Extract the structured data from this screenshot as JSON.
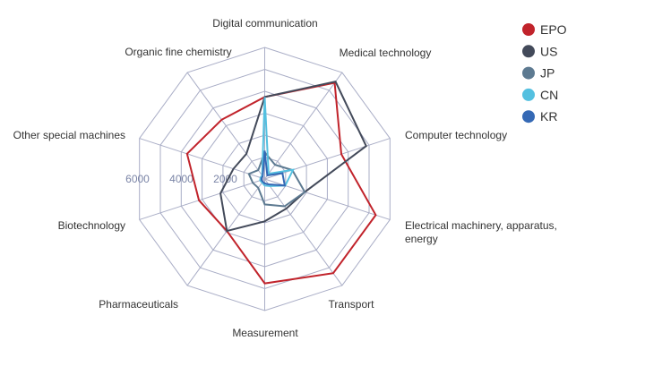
{
  "chart_data": {
    "type": "radar",
    "title": "",
    "indicators": [
      "Digital communication",
      "Medical technology",
      "Computer technology",
      [
        "Electrical machinery, apparatus,",
        "energy"
      ],
      "Transport",
      "Measurement",
      "Pharmaceuticals",
      "Biotechnology",
      "Other special machines",
      "Organic fine chemistry"
    ],
    "rmax": 6000,
    "ring_step": 1000,
    "tick_labels": [
      "2000",
      "4000",
      "6000"
    ],
    "tick_values": [
      2000,
      4000,
      6000
    ],
    "legend_position": "top-right",
    "series": [
      {
        "name": "EPO",
        "color": "#c1232b",
        "values": [
          3740,
          5420,
          3670,
          5320,
          5310,
          4760,
          2930,
          3150,
          3720,
          3340
        ]
      },
      {
        "name": "US",
        "color": "#434a5a",
        "values": [
          3740,
          5490,
          4860,
          1920,
          1670,
          1930,
          2930,
          2120,
          1500,
          1420
        ]
      },
      {
        "name": "JP",
        "color": "#5d7a91",
        "values": [
          1220,
          800,
          1320,
          1920,
          1540,
          1160,
          500,
          570,
          760,
          500
        ]
      },
      {
        "name": "CN",
        "color": "#54c0e0",
        "values": [
          3740,
          300,
          1360,
          980,
          400,
          300,
          200,
          220,
          200,
          200
        ]
      },
      {
        "name": "KR",
        "color": "#3569b5",
        "values": [
          1290,
          200,
          850,
          960,
          300,
          200,
          150,
          150,
          150,
          150
        ]
      }
    ]
  },
  "grid_color": "#a9adc6"
}
